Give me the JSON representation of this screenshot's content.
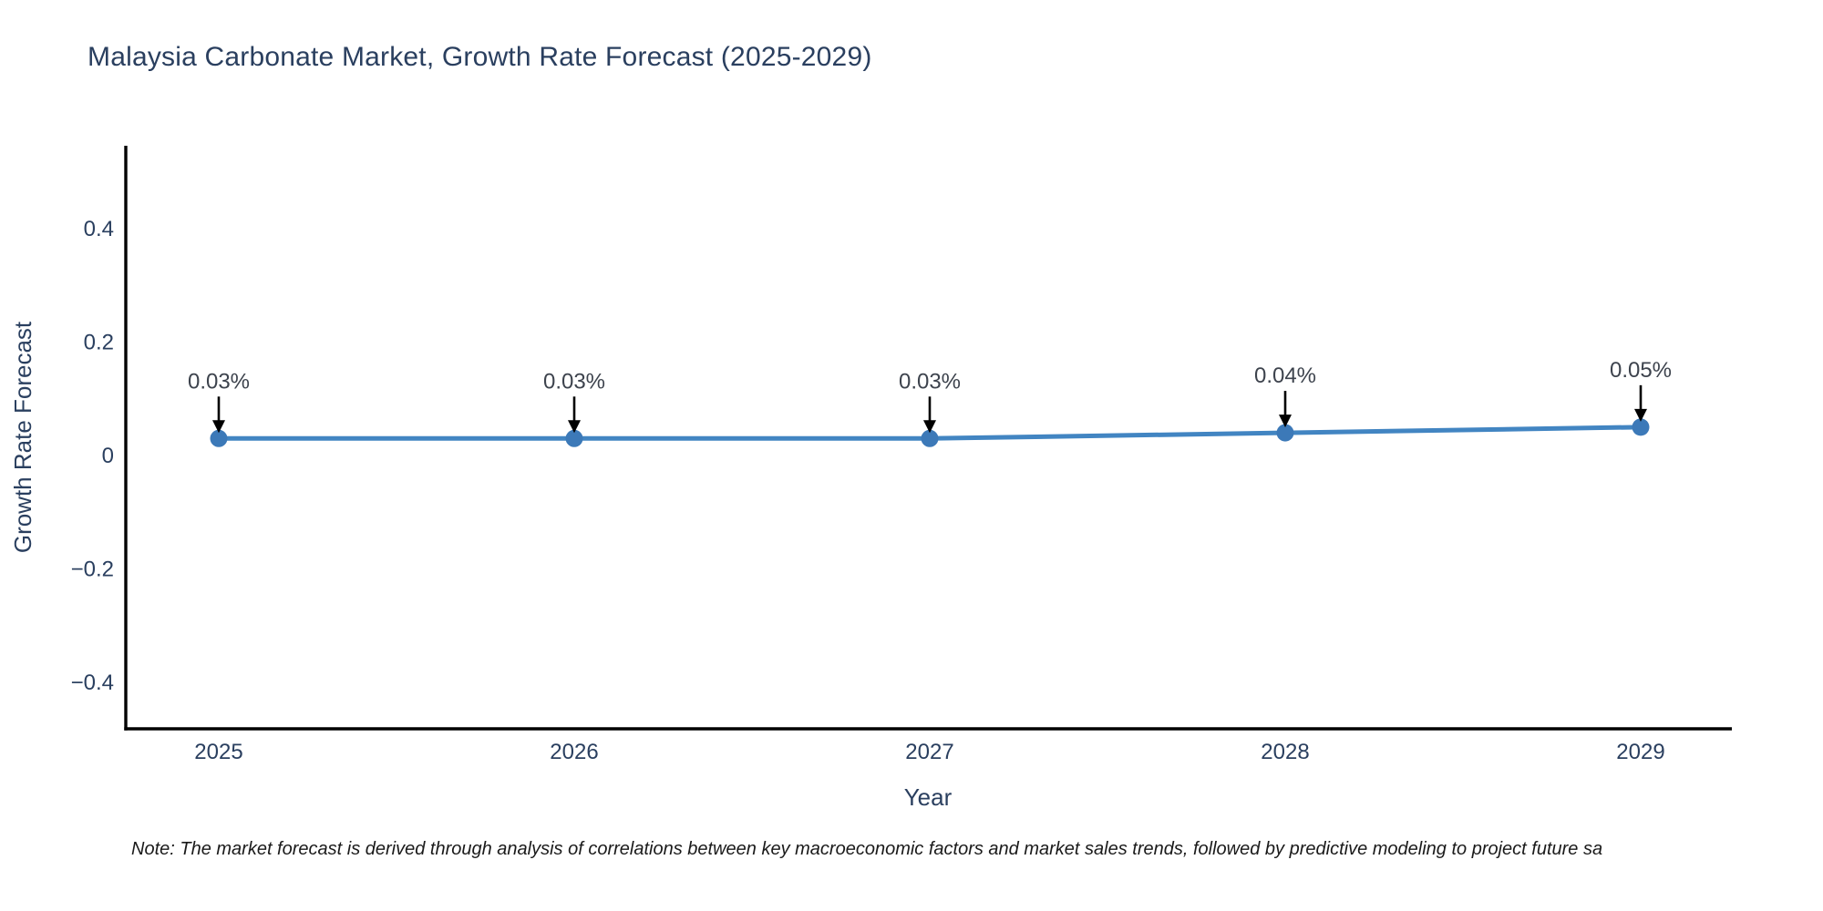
{
  "title": "Malaysia Carbonate Market, Growth Rate Forecast (2025-2029)",
  "note": "Note: The market forecast is derived through analysis of correlations between key macroeconomic factors and market sales trends, followed by predictive modeling to project future sa",
  "chart_data": {
    "type": "line",
    "title": "Malaysia Carbonate Market, Growth Rate Forecast (2025-2029)",
    "xlabel": "Year",
    "ylabel": "Growth Rate Forecast",
    "x": [
      "2025",
      "2026",
      "2027",
      "2028",
      "2029"
    ],
    "values": [
      0.03,
      0.03,
      0.03,
      0.04,
      0.05
    ],
    "point_labels": [
      "0.03%",
      "0.03%",
      "0.03%",
      "0.04%",
      "0.05%"
    ],
    "yticks": [
      0.4,
      0.2,
      0,
      -0.2,
      -0.4
    ],
    "ylim": [
      -0.48,
      0.55
    ],
    "grid": false,
    "legend": false,
    "annotation_style": "label-with-down-arrow",
    "colors": {
      "line": "#4285c2",
      "marker": "#3c79b8",
      "axis": "#000000",
      "tick_label": "#2a3f5f",
      "annotation_text": "#3d434d",
      "annotation_arrow": "#000000",
      "title_text": "#2a3f5f"
    }
  }
}
